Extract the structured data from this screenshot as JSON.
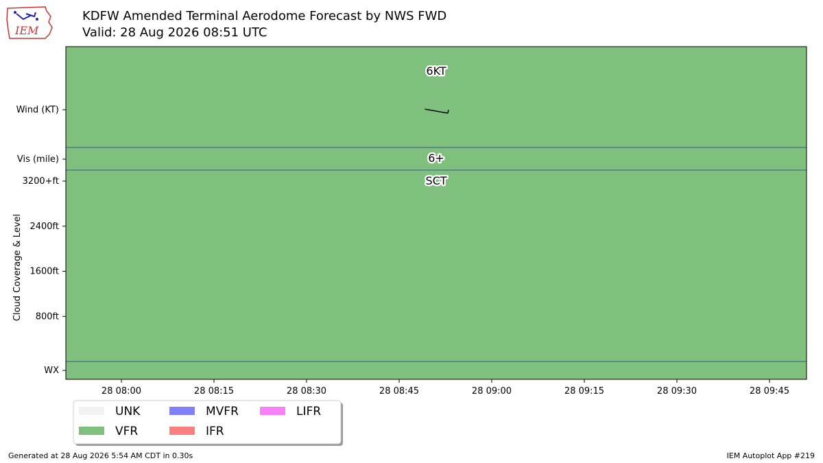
{
  "header": {
    "title": "KDFW Amended Terminal Aerodome Forecast by NWS FWD",
    "valid": "Valid: 28 Aug 2026 08:51 UTC",
    "logo_text": "IEM"
  },
  "footer": {
    "left": "Generated at 28 Aug 2026 5:54 AM CDT in 0.30s",
    "right": "IEM Autoplot App #219"
  },
  "colors": {
    "VFR": "#7fc07f",
    "MVFR": "#8080f8",
    "IFR": "#f88080",
    "LIFR": "#f880f8",
    "UNK": "#f2f2f2",
    "divider": "#3b5a86"
  },
  "chart_data": {
    "type": "timeline",
    "x_ticks": [
      "28 08:00",
      "28 08:15",
      "28 08:30",
      "28 08:45",
      "28 09:00",
      "28 09:15",
      "28 09:30",
      "28 09:45"
    ],
    "xlim": [
      "28 07:51",
      "28 09:51"
    ],
    "y_labels": [
      "Wind (KT)",
      "Vis (mile)",
      "3200+ft",
      "2400ft",
      "1600ft",
      "800ft",
      "WX"
    ],
    "ylabel": "Cloud Coverage & Level",
    "cloud_ylim_ft": [
      0,
      3200
    ],
    "periods": [
      {
        "start": "28 07:51",
        "end": "28 09:51",
        "category": "VFR",
        "wind_speed_kt": 6,
        "wind_dir_deg": 280,
        "wind_label": "6KT",
        "vis_label": "6+",
        "clouds": [
          {
            "coverage": "SCT",
            "level": "3200+ft"
          }
        ],
        "label_time": "28 08:51"
      }
    ],
    "legend": [
      "UNK",
      "VFR",
      "MVFR",
      "IFR",
      "LIFR"
    ],
    "legend_placement": "bottom-left"
  }
}
